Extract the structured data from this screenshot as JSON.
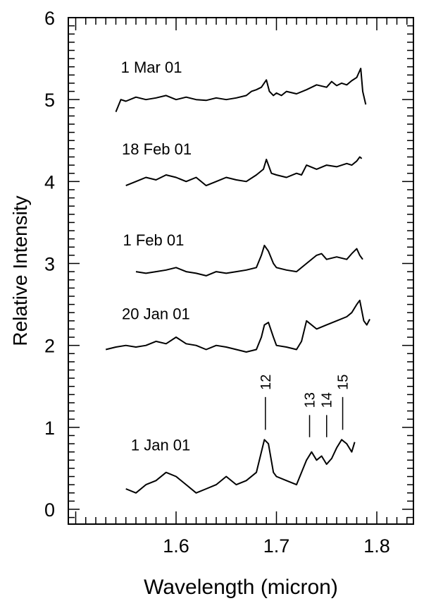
{
  "chart_data": {
    "type": "line",
    "title": "",
    "xlabel": "Wavelength (micron)",
    "ylabel": "Relative Intensity",
    "xlim": [
      1.5,
      1.85
    ],
    "ylim": [
      -0.2,
      6.0
    ],
    "x_ticks": [
      "1.6",
      "1.7",
      "1.8"
    ],
    "x_tick_values": [
      1.6,
      1.7,
      1.8
    ],
    "y_ticks": [
      "0",
      "1",
      "2",
      "3",
      "4",
      "5",
      "6"
    ],
    "y_tick_values": [
      0,
      1,
      2,
      3,
      4,
      5,
      6
    ],
    "grid": false,
    "series": [
      {
        "name": "1 Mar 01",
        "x": [
          1.54,
          1.545,
          1.55,
          1.56,
          1.57,
          1.58,
          1.59,
          1.6,
          1.61,
          1.62,
          1.63,
          1.64,
          1.65,
          1.66,
          1.67,
          1.675,
          1.68,
          1.685,
          1.69,
          1.693,
          1.697,
          1.7,
          1.705,
          1.71,
          1.72,
          1.73,
          1.74,
          1.75,
          1.755,
          1.76,
          1.765,
          1.77,
          1.775,
          1.78,
          1.784,
          1.786,
          1.789
        ],
        "y": [
          4.85,
          5.0,
          4.98,
          5.03,
          5.0,
          5.02,
          5.05,
          5.0,
          5.03,
          5.0,
          4.99,
          5.02,
          5.0,
          5.02,
          5.05,
          5.1,
          5.12,
          5.15,
          5.24,
          5.1,
          5.05,
          5.08,
          5.05,
          5.1,
          5.07,
          5.12,
          5.18,
          5.15,
          5.22,
          5.17,
          5.2,
          5.18,
          5.23,
          5.27,
          5.38,
          5.1,
          4.94
        ]
      },
      {
        "name": "18 Feb 01",
        "x": [
          1.55,
          1.56,
          1.57,
          1.58,
          1.59,
          1.6,
          1.61,
          1.62,
          1.63,
          1.64,
          1.65,
          1.66,
          1.67,
          1.68,
          1.687,
          1.69,
          1.695,
          1.7,
          1.71,
          1.72,
          1.725,
          1.73,
          1.74,
          1.75,
          1.76,
          1.77,
          1.775,
          1.78,
          1.783,
          1.785
        ],
        "y": [
          3.95,
          4.0,
          4.05,
          4.02,
          4.08,
          4.05,
          4.0,
          4.05,
          3.95,
          4.0,
          4.05,
          4.02,
          4.0,
          4.08,
          4.15,
          4.27,
          4.1,
          4.08,
          4.05,
          4.1,
          4.08,
          4.2,
          4.15,
          4.2,
          4.18,
          4.22,
          4.2,
          4.25,
          4.3,
          4.28
        ]
      },
      {
        "name": "1 Feb 01",
        "x": [
          1.56,
          1.57,
          1.58,
          1.59,
          1.6,
          1.61,
          1.62,
          1.63,
          1.64,
          1.65,
          1.66,
          1.67,
          1.68,
          1.685,
          1.688,
          1.692,
          1.697,
          1.7,
          1.71,
          1.72,
          1.73,
          1.74,
          1.745,
          1.75,
          1.76,
          1.77,
          1.775,
          1.78,
          1.783,
          1.786
        ],
        "y": [
          2.9,
          2.88,
          2.9,
          2.92,
          2.95,
          2.9,
          2.88,
          2.85,
          2.9,
          2.88,
          2.9,
          2.92,
          2.95,
          3.1,
          3.22,
          3.15,
          3.0,
          2.95,
          2.92,
          2.9,
          3.0,
          3.1,
          3.12,
          3.05,
          3.08,
          3.05,
          3.12,
          3.18,
          3.1,
          3.05
        ]
      },
      {
        "name": "20 Jan 01",
        "x": [
          1.53,
          1.54,
          1.55,
          1.56,
          1.57,
          1.58,
          1.59,
          1.6,
          1.61,
          1.62,
          1.63,
          1.64,
          1.65,
          1.66,
          1.67,
          1.68,
          1.685,
          1.688,
          1.692,
          1.697,
          1.7,
          1.71,
          1.72,
          1.725,
          1.73,
          1.74,
          1.75,
          1.76,
          1.77,
          1.775,
          1.78,
          1.783,
          1.787,
          1.79,
          1.793
        ],
        "y": [
          1.95,
          1.98,
          2.0,
          1.98,
          2.0,
          2.05,
          2.02,
          2.1,
          2.02,
          2.0,
          1.95,
          2.0,
          1.98,
          1.95,
          1.92,
          1.95,
          2.1,
          2.25,
          2.28,
          2.1,
          2.0,
          1.98,
          1.95,
          2.05,
          2.3,
          2.2,
          2.25,
          2.3,
          2.35,
          2.4,
          2.5,
          2.55,
          2.3,
          2.25,
          2.32
        ]
      },
      {
        "name": "1 Jan 01",
        "x": [
          1.55,
          1.56,
          1.57,
          1.58,
          1.59,
          1.6,
          1.61,
          1.62,
          1.63,
          1.64,
          1.65,
          1.66,
          1.67,
          1.68,
          1.685,
          1.688,
          1.692,
          1.697,
          1.7,
          1.71,
          1.72,
          1.73,
          1.735,
          1.74,
          1.745,
          1.75,
          1.755,
          1.76,
          1.765,
          1.77,
          1.775,
          1.778
        ],
        "y": [
          0.25,
          0.2,
          0.3,
          0.35,
          0.45,
          0.4,
          0.3,
          0.2,
          0.25,
          0.3,
          0.4,
          0.3,
          0.35,
          0.45,
          0.7,
          0.85,
          0.8,
          0.45,
          0.4,
          0.35,
          0.3,
          0.6,
          0.7,
          0.6,
          0.65,
          0.55,
          0.62,
          0.75,
          0.85,
          0.8,
          0.7,
          0.82
        ]
      }
    ],
    "annotations": [
      {
        "text": "1 Mar 01",
        "x": 1.545,
        "y": 5.33
      },
      {
        "text": "18 Feb 01",
        "x": 1.546,
        "y": 4.33
      },
      {
        "text": "1 Feb 01",
        "x": 1.547,
        "y": 3.22
      },
      {
        "text": "20 Jan 01",
        "x": 1.546,
        "y": 2.32
      },
      {
        "text": "1 Jan 01",
        "x": 1.555,
        "y": 0.72
      }
    ],
    "markers": [
      {
        "label": "12",
        "x": 1.689,
        "y_bottom": 0.97,
        "y_top": 1.37
      },
      {
        "label": "13",
        "x": 1.733,
        "y_bottom": 0.88,
        "y_top": 1.15
      },
      {
        "label": "14",
        "x": 1.75,
        "y_bottom": 0.88,
        "y_top": 1.15
      },
      {
        "label": "15",
        "x": 1.766,
        "y_bottom": 0.97,
        "y_top": 1.37
      }
    ]
  }
}
